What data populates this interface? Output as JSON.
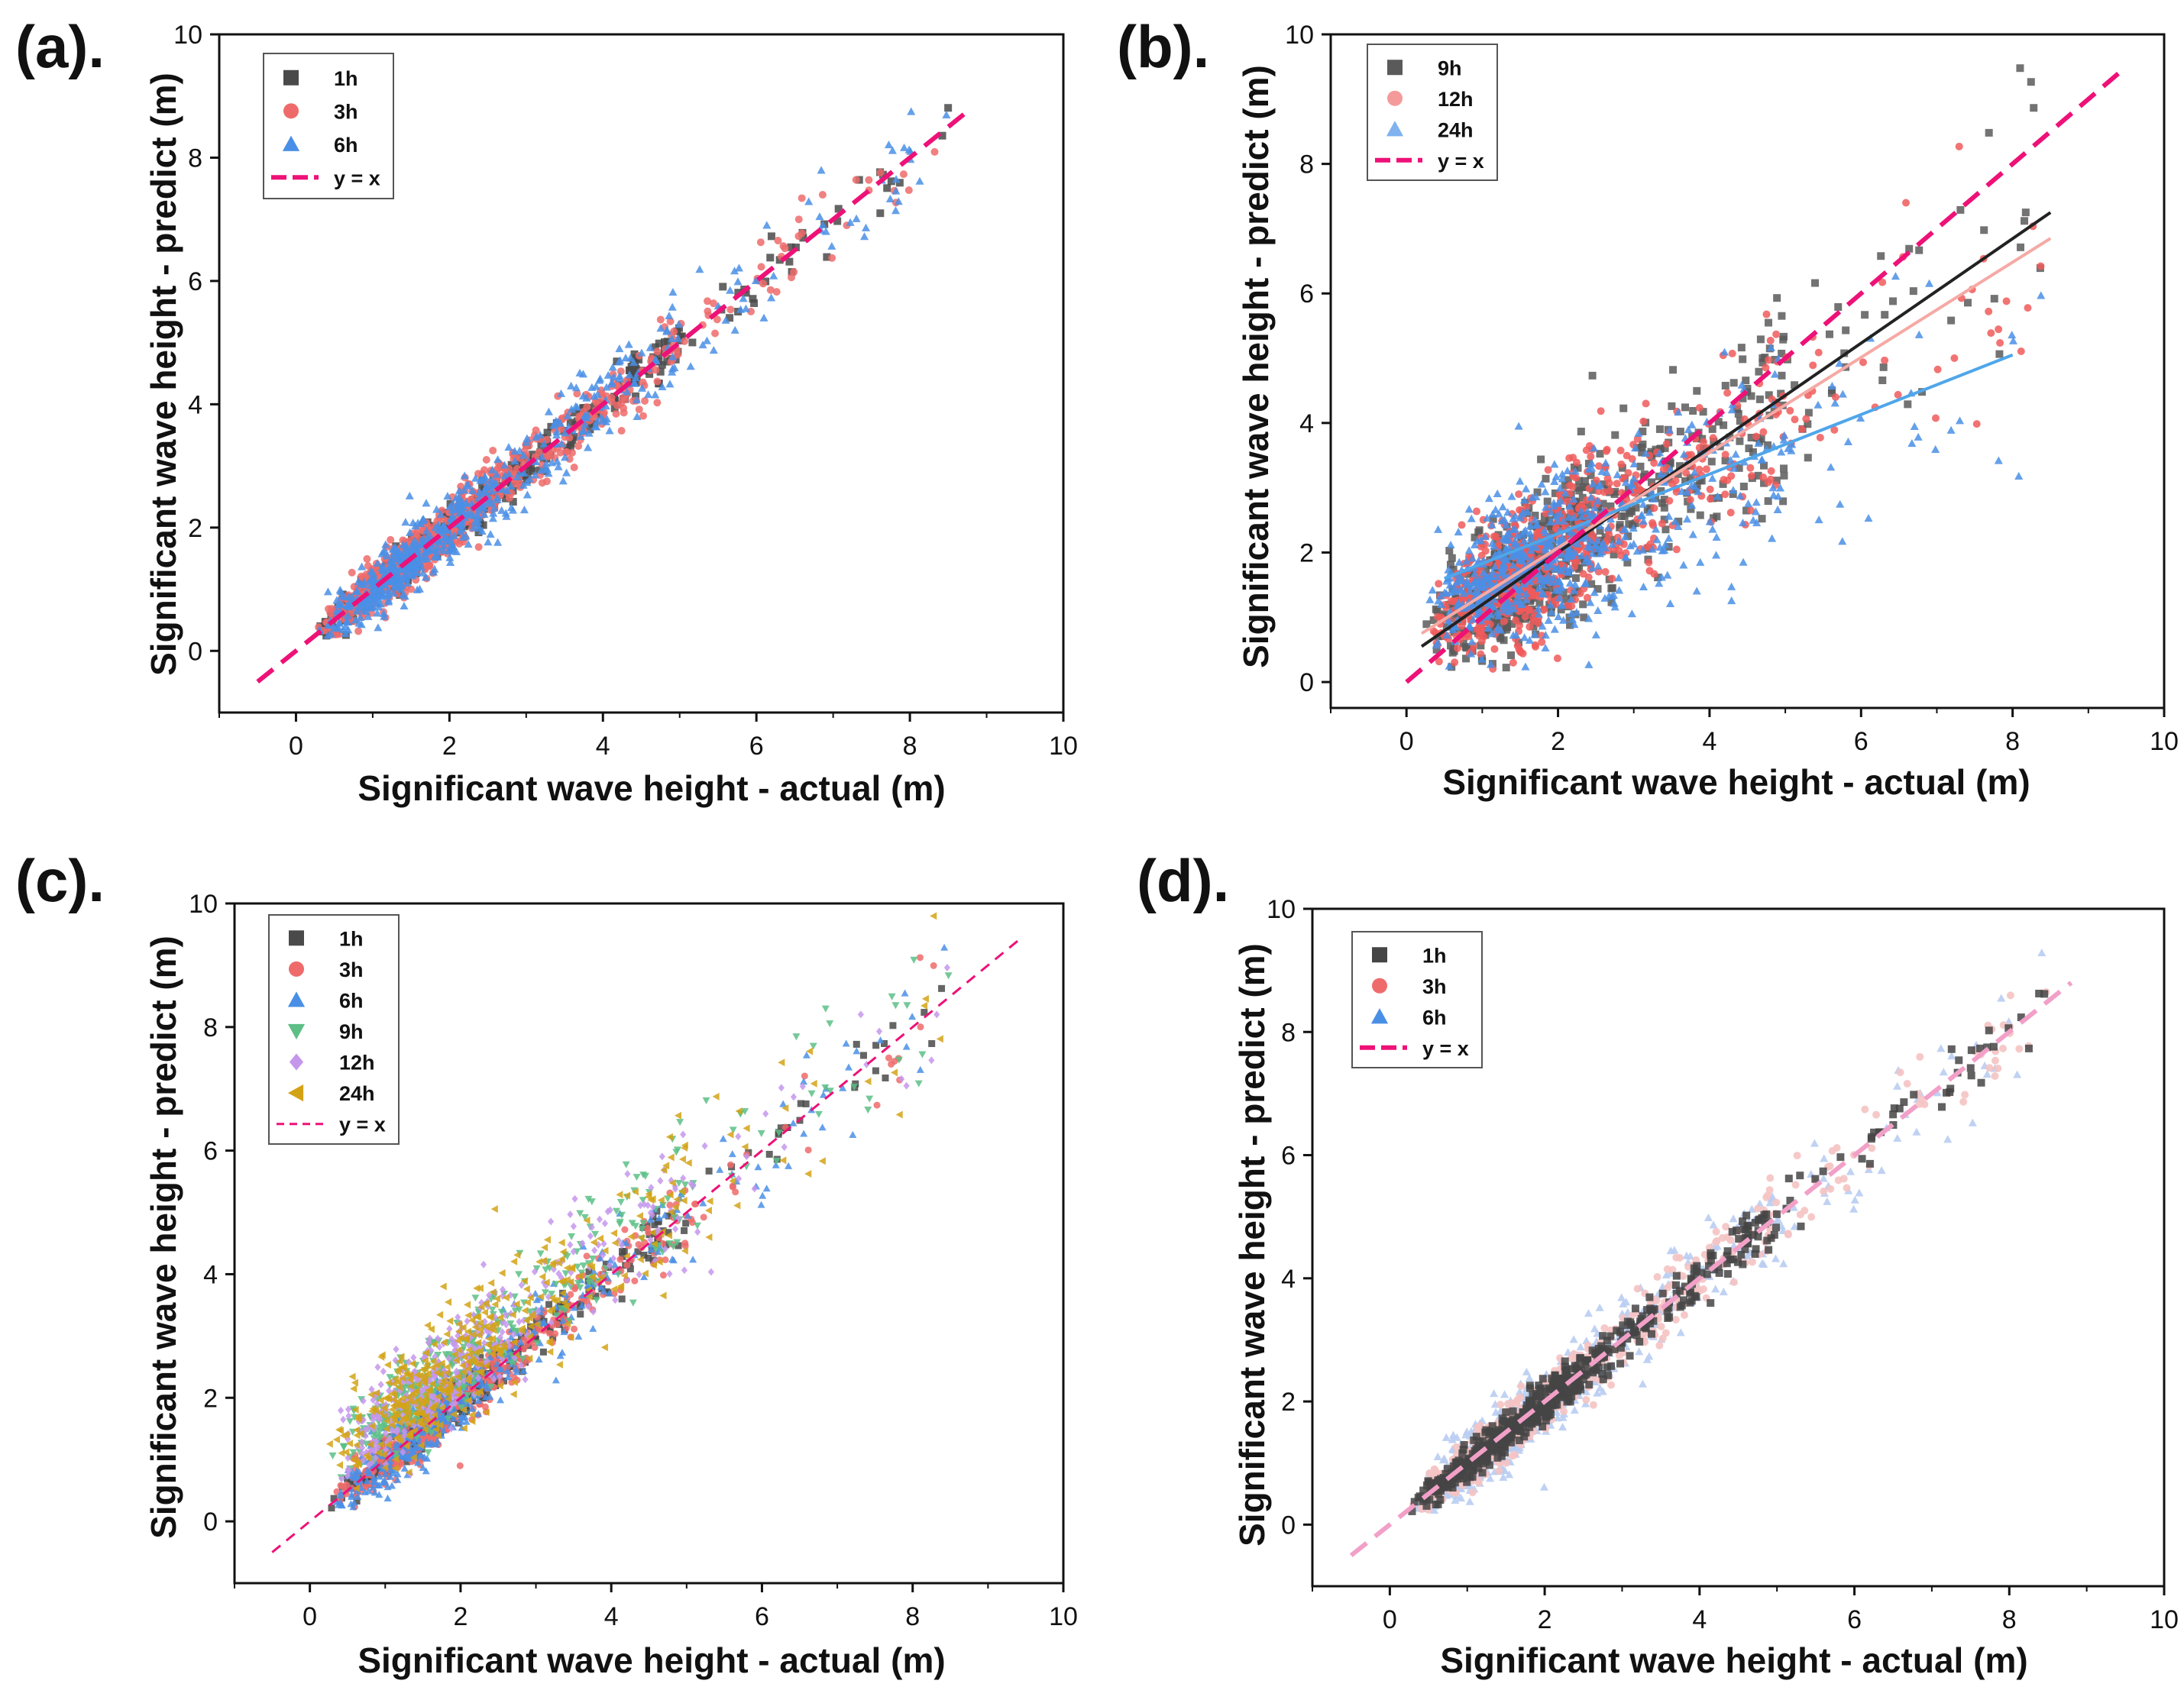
{
  "figure": {
    "panels": [
      {
        "label": "(a).",
        "legend_items": [
          {
            "label": "1h",
            "marker": "square",
            "color": "#4a4a4a"
          },
          {
            "label": "3h",
            "marker": "circle",
            "color": "#ef6b6b"
          },
          {
            "label": "6h",
            "marker": "triangle",
            "color": "#4a8fe6"
          },
          {
            "label": "y = x",
            "marker": "dash",
            "color": "#ee1177"
          }
        ]
      },
      {
        "label": "(b).",
        "legend_items": [
          {
            "label": "9h",
            "marker": "square",
            "color": "#5a5a5a"
          },
          {
            "label": "12h",
            "marker": "circle",
            "color": "#f49a9a"
          },
          {
            "label": "24h",
            "marker": "triangle",
            "color": "#7fb2ee"
          },
          {
            "label": "y = x",
            "marker": "dash",
            "color": "#ee1177"
          }
        ]
      },
      {
        "label": "(c).",
        "legend_items": [
          {
            "label": "1h",
            "marker": "square",
            "color": "#4a4a4a"
          },
          {
            "label": "3h",
            "marker": "circle",
            "color": "#ef6b6b"
          },
          {
            "label": "6h",
            "marker": "triangle",
            "color": "#4a8fe6"
          },
          {
            "label": "9h",
            "marker": "tri-down",
            "color": "#5cbf86"
          },
          {
            "label": "12h",
            "marker": "diamond",
            "color": "#c597ec"
          },
          {
            "label": "24h",
            "marker": "tri-left",
            "color": "#d3a316"
          },
          {
            "label": "y = x",
            "marker": "dash-thin",
            "color": "#ee1177"
          }
        ]
      },
      {
        "label": "(d).",
        "legend_items": [
          {
            "label": "1h",
            "marker": "square",
            "color": "#454545"
          },
          {
            "label": "3h",
            "marker": "circle",
            "color": "#ef6b6b"
          },
          {
            "label": "6h",
            "marker": "triangle",
            "color": "#4a8fe6"
          },
          {
            "label": "y = x",
            "marker": "dash",
            "color": "#ee1177"
          }
        ]
      }
    ]
  },
  "chart_data": [
    {
      "type": "scatter",
      "title": "",
      "xlabel": "Significant wave height - actual (m)",
      "ylabel": "Significant wave height - predict (m)",
      "xlim": [
        -1,
        10
      ],
      "ylim": [
        -1,
        10
      ],
      "xticks": [
        "0",
        "2",
        "4",
        "6",
        "8",
        "10"
      ],
      "yticks": [
        "0",
        "2",
        "4",
        "6",
        "8",
        "10"
      ],
      "series": [
        {
          "name": "1h",
          "spread": 0.2,
          "color": "#4a4a4a",
          "marker": "square"
        },
        {
          "name": "3h",
          "spread": 0.3,
          "color": "#ef6b6b",
          "marker": "circle"
        },
        {
          "name": "6h",
          "spread": 0.38,
          "color": "#4a8fe6",
          "marker": "triangle"
        }
      ],
      "reference_line": {
        "name": "y = x",
        "x": [
          -0.5,
          8.8
        ],
        "y": [
          -0.5,
          8.8
        ]
      },
      "fit_lines": [],
      "legend_position": "top-left"
    },
    {
      "type": "scatter",
      "title": "",
      "xlabel": "Significant wave height - actual (m)",
      "ylabel": "Significant wave height - predict (m)",
      "xlim": [
        -1,
        10
      ],
      "ylim": [
        -0.4,
        10
      ],
      "xticks": [
        "0",
        "2",
        "4",
        "6",
        "8",
        "10"
      ],
      "yticks": [
        "0",
        "2",
        "4",
        "6",
        "8",
        "10"
      ],
      "series": [
        {
          "name": "9h",
          "spread": 0.55,
          "color": "#5a5a5a",
          "marker": "square"
        },
        {
          "name": "12h",
          "spread": 0.6,
          "color": "#f05a5a",
          "marker": "circle"
        },
        {
          "name": "24h",
          "spread": 0.65,
          "color": "#4a8fe6",
          "marker": "triangle"
        }
      ],
      "reference_line": {
        "name": "y = x",
        "x": [
          0,
          9.5
        ],
        "y": [
          0,
          9.5
        ]
      },
      "fit_lines": [
        {
          "name": "9h fit",
          "x": [
            0.2,
            8.5
          ],
          "y": [
            0.55,
            7.25
          ],
          "color": "#222222"
        },
        {
          "name": "12h fit",
          "x": [
            0.2,
            8.5
          ],
          "y": [
            0.75,
            6.85
          ],
          "color": "#f5aaa5"
        },
        {
          "name": "24h fit",
          "x": [
            0.5,
            8.0
          ],
          "y": [
            1.6,
            5.05
          ],
          "color": "#4fa6ea"
        }
      ],
      "legend_position": "top-left"
    },
    {
      "type": "scatter",
      "title": "",
      "xlabel": "Significant wave height - actual (m)",
      "ylabel": "Significant wave height - predict (m)",
      "xlim": [
        -1,
        10
      ],
      "ylim": [
        -1,
        10
      ],
      "xticks": [
        "0",
        "2",
        "4",
        "6",
        "8",
        "10"
      ],
      "yticks": [
        "0",
        "2",
        "4",
        "6",
        "8",
        "10"
      ],
      "series": [
        {
          "name": "1h",
          "spread": 0.2,
          "color": "#4a4a4a",
          "marker": "square"
        },
        {
          "name": "3h",
          "spread": 0.3,
          "color": "#ef6b6b",
          "marker": "circle"
        },
        {
          "name": "6h",
          "spread": 0.38,
          "color": "#4a8fe6",
          "marker": "triangle"
        },
        {
          "name": "9h",
          "spread": 0.5,
          "color": "#5cbf86",
          "marker": "tri-down"
        },
        {
          "name": "12h",
          "spread": 0.55,
          "color": "#c597ec",
          "marker": "diamond"
        },
        {
          "name": "24h",
          "spread": 0.6,
          "color": "#d3a316",
          "marker": "tri-left"
        }
      ],
      "reference_line": {
        "name": "y = x",
        "x": [
          -0.5,
          9.4
        ],
        "y": [
          -0.5,
          9.4
        ]
      },
      "fit_lines": [],
      "legend_position": "top-left"
    },
    {
      "type": "scatter",
      "title": "",
      "xlabel": "Significant wave height - actual (m)",
      "ylabel": "Significant wave height - predict (m)",
      "xlim": [
        -1,
        10
      ],
      "ylim": [
        -1,
        10
      ],
      "xticks": [
        "0",
        "2",
        "4",
        "6",
        "8",
        "10"
      ],
      "yticks": [
        "0",
        "2",
        "4",
        "6",
        "8",
        "10"
      ],
      "series": [
        {
          "name": "6h",
          "spread": 0.38,
          "color": "#b9cdf2",
          "marker": "triangle"
        },
        {
          "name": "3h",
          "spread": 0.3,
          "color": "#f5c3c3",
          "marker": "circle"
        },
        {
          "name": "1h",
          "spread": 0.2,
          "color": "#454545",
          "marker": "square"
        }
      ],
      "reference_line": {
        "name": "y = x",
        "x": [
          -0.5,
          8.8
        ],
        "y": [
          -0.5,
          8.8
        ],
        "color": "#f2a0c8"
      },
      "fit_lines": [],
      "legend_position": "top-left"
    }
  ]
}
